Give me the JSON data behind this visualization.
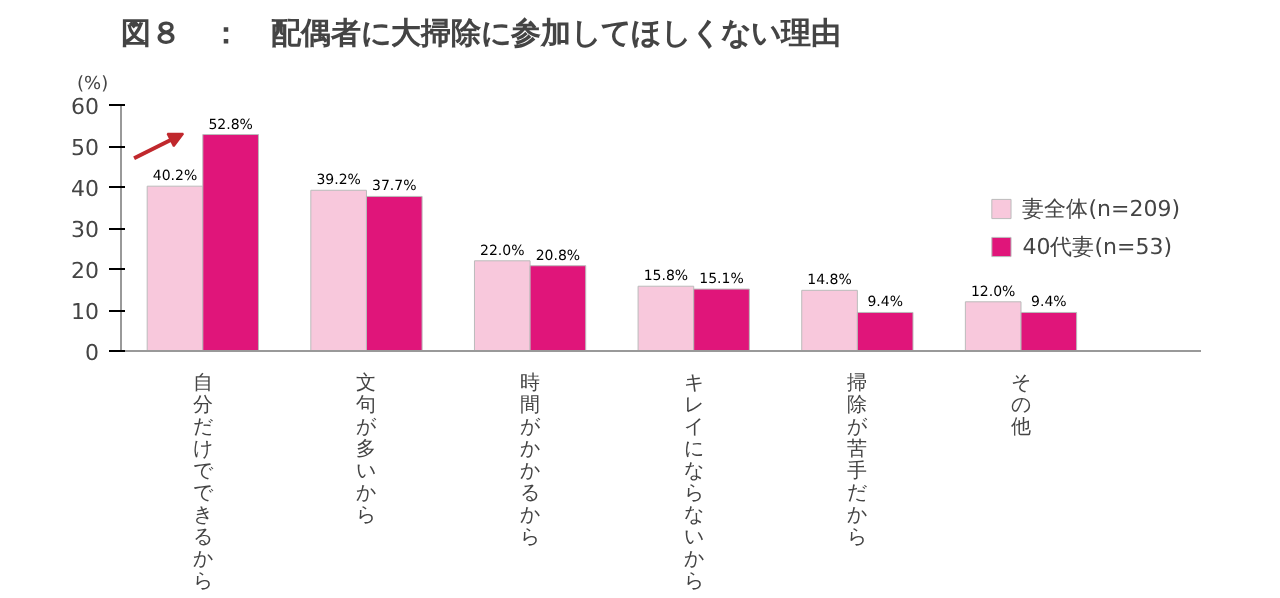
{
  "chart_data": {
    "type": "bar",
    "title": "図８　：　配偶者に大掃除に参加してほしくない理由",
    "ylabel": "(%)",
    "categories": [
      "自分だけでできるから",
      "文句が多いから",
      "時間がかかるから",
      "キレイにならないから",
      "掃除が苦手だから",
      "その他"
    ],
    "series": [
      {
        "name": "妻全体(n=209)",
        "color": "#f8c8dc",
        "values": [
          40.2,
          39.2,
          22.0,
          15.8,
          14.8,
          12.0
        ],
        "value_labels": [
          "40.2%",
          "39.2%",
          "22.0%",
          "15.8%",
          "14.8%",
          "12.0%"
        ]
      },
      {
        "name": "40代妻(n=53)",
        "color": "#e0157a",
        "values": [
          52.8,
          37.7,
          20.8,
          15.1,
          9.4,
          9.4
        ],
        "value_labels": [
          "52.8%",
          "37.7%",
          "20.8%",
          "15.1%",
          "9.4%",
          "9.4%"
        ]
      }
    ],
    "ylim": [
      0,
      60
    ],
    "yticks": [
      0,
      10,
      20,
      30,
      40,
      50,
      60
    ],
    "legend": "right"
  }
}
